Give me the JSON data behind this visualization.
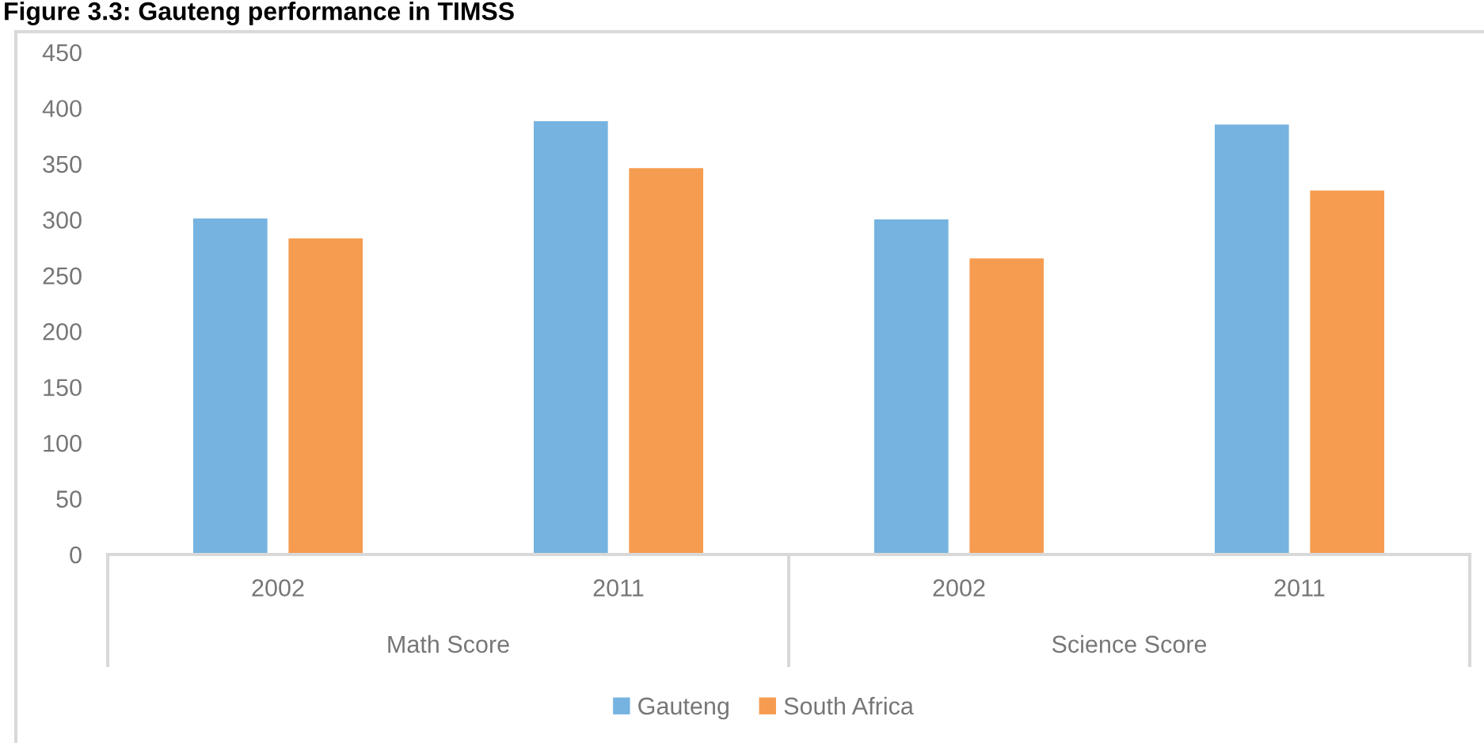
{
  "chart_data": {
    "type": "bar",
    "title": "Figure 3.3: Gauteng performance in TIMSS",
    "categories": [
      "2002",
      "2011",
      "2002",
      "2011"
    ],
    "annotations": [
      "Math Score",
      "Science Score"
    ],
    "series": [
      {
        "name": "Gauteng",
        "color": "#76b3e0",
        "values": [
          302,
          389,
          301,
          386
        ]
      },
      {
        "name": "South Africa",
        "color": "#f69c50",
        "values": [
          284,
          347,
          266,
          327
        ]
      }
    ],
    "ylim": [
      0,
      450
    ],
    "yticks": [
      0,
      50,
      100,
      150,
      200,
      250,
      300,
      350,
      400,
      450
    ],
    "grid": false,
    "legend": "bottom"
  }
}
